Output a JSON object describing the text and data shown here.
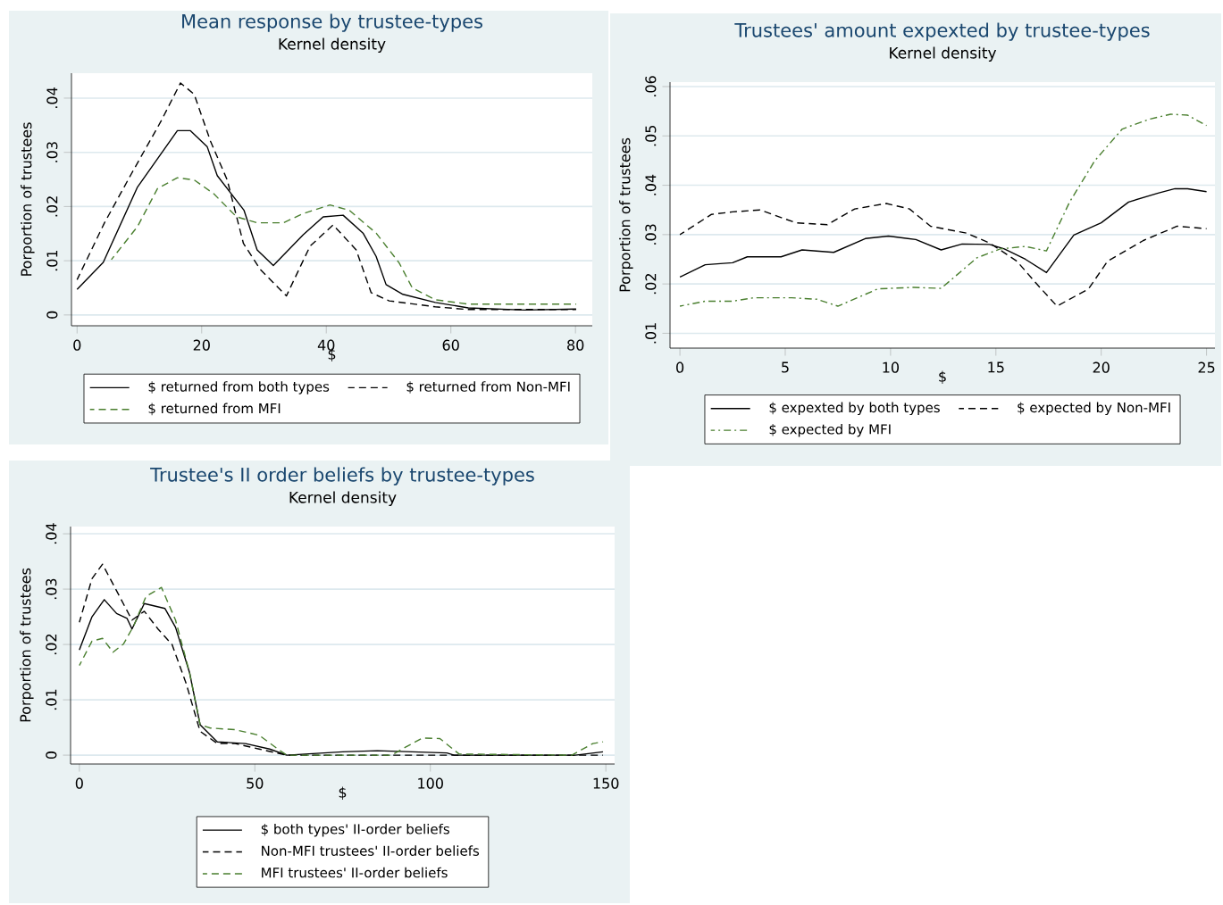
{
  "chart_data": [
    {
      "type": "line",
      "title": "Mean response by trustee-types",
      "subtitle": "Kernel density",
      "xlabel": "$",
      "ylabel": "Porportion of trustees",
      "xlim": [
        -0.9,
        82.7
      ],
      "ylim": [
        -0.002,
        0.0446
      ],
      "xticks": [
        0,
        20,
        40,
        60,
        80
      ],
      "yticks": [
        0,
        {
          "value": 0.01,
          "label": ".01"
        },
        {
          "value": 0.02,
          "label": ".02"
        },
        {
          "value": 0.03,
          "label": ".03"
        },
        {
          "value": 0.04,
          "label": ".04"
        }
      ],
      "grid": "y",
      "legend": "bottom",
      "series": [
        {
          "name": "$ returned from both types",
          "color": "#000000",
          "line_style": "solid",
          "x": [
            0,
            4.2,
            9.7,
            16.1,
            18.2,
            20.9,
            22.5,
            26.8,
            28.9,
            31.5,
            36.3,
            39.5,
            42.7,
            45.9,
            48,
            49.6,
            52.3,
            57.5,
            62.8,
            71.8,
            80.1
          ],
          "values": [
            0.0047,
            0.0097,
            0.0236,
            0.034,
            0.034,
            0.031,
            0.0257,
            0.0193,
            0.012,
            0.0091,
            0.0148,
            0.0181,
            0.0184,
            0.0151,
            0.0108,
            0.0056,
            0.0038,
            0.0023,
            0.0013,
            0.0009,
            0.0011
          ]
        },
        {
          "name": "$ returned from Non-MFI",
          "color": "#000000",
          "line_style": "dashed",
          "x": [
            0,
            4.4,
            8.7,
            13.5,
            16.6,
            18.8,
            21.4,
            24.1,
            26.7,
            29.4,
            33.6,
            37.4,
            41.1,
            44.8,
            47.2,
            50.1,
            57.5,
            62.8,
            80.1
          ],
          "values": [
            0.0065,
            0.017,
            0.026,
            0.0358,
            0.0428,
            0.0407,
            0.0321,
            0.0249,
            0.0132,
            0.0084,
            0.0035,
            0.0127,
            0.0166,
            0.012,
            0.0041,
            0.0026,
            0.0015,
            0.001,
            0.001
          ]
        },
        {
          "name": "$ returned from MFI",
          "color": "#4a7f2f",
          "line_style": "dashed",
          "x": [
            5.5,
            9.7,
            12.9,
            16.1,
            18.8,
            21.9,
            25.6,
            28.9,
            33.1,
            36.3,
            40.6,
            43.7,
            48,
            51.7,
            53.8,
            57.5,
            62.8,
            80.1
          ],
          "values": [
            0.0102,
            0.0163,
            0.0233,
            0.0253,
            0.0249,
            0.0224,
            0.0181,
            0.017,
            0.017,
            0.0187,
            0.0203,
            0.0193,
            0.0151,
            0.0096,
            0.005,
            0.0028,
            0.002,
            0.002
          ]
        }
      ]
    },
    {
      "type": "line",
      "title": "Trustees' amount expexted by trustee-types",
      "subtitle": "Kernel density",
      "xlabel": "$",
      "ylabel": "Porportion of trustees",
      "xlim": [
        -0.47,
        25.4
      ],
      "ylim": [
        0.007,
        0.0609
      ],
      "xticks": [
        0,
        5,
        10,
        15,
        20,
        25
      ],
      "yticks": [
        {
          "value": 0.01,
          "label": ".01"
        },
        {
          "value": 0.02,
          "label": ".02"
        },
        {
          "value": 0.03,
          "label": ".03"
        },
        {
          "value": 0.04,
          "label": ".04"
        },
        {
          "value": 0.05,
          "label": ".05"
        },
        {
          "value": 0.06,
          "label": ".06"
        }
      ],
      "grid": "y",
      "legend": "bottom",
      "series": [
        {
          "name": "$ expexted by both types",
          "color": "#000000",
          "line_style": "solid",
          "x": [
            0,
            1.2,
            2.5,
            3.2,
            4.8,
            5.8,
            7.3,
            8.8,
            9.9,
            11.2,
            12.4,
            13.4,
            14.7,
            15.4,
            16.4,
            17.4,
            18.7,
            20,
            21.3,
            22.7,
            23.5,
            24.1,
            25
          ],
          "values": [
            0.0214,
            0.0239,
            0.0243,
            0.0255,
            0.0255,
            0.0269,
            0.0264,
            0.0292,
            0.0297,
            0.029,
            0.0269,
            0.0281,
            0.028,
            0.0271,
            0.025,
            0.0223,
            0.0299,
            0.0324,
            0.0366,
            0.0384,
            0.0393,
            0.0393,
            0.0387
          ]
        },
        {
          "name": "$ expected by Non-MFI",
          "color": "#000000",
          "line_style": "dashed",
          "x": [
            0,
            1.5,
            2.5,
            3.8,
            5.5,
            7,
            8.3,
            9.8,
            10.9,
            11.9,
            13.6,
            14.7,
            16,
            17,
            17.9,
            19.4,
            20.3,
            22,
            23.6,
            25
          ],
          "values": [
            0.03,
            0.0341,
            0.0346,
            0.035,
            0.0324,
            0.032,
            0.0352,
            0.0363,
            0.0352,
            0.0317,
            0.0303,
            0.0283,
            0.0246,
            0.0197,
            0.0155,
            0.019,
            0.0246,
            0.0288,
            0.0317,
            0.0312
          ]
        },
        {
          "name": "$ expected by MFI",
          "color": "#4a7f2f",
          "line_style": "dashdot",
          "x": [
            0,
            1.2,
            2.5,
            3.5,
            5.3,
            6.5,
            7.5,
            9.4,
            11.1,
            12.4,
            14.1,
            15.2,
            16.4,
            17.4,
            18.5,
            19.7,
            21,
            22.3,
            23.3,
            24.1,
            25
          ],
          "values": [
            0.0155,
            0.0165,
            0.0165,
            0.0172,
            0.0172,
            0.0169,
            0.0155,
            0.019,
            0.0193,
            0.0191,
            0.0253,
            0.0271,
            0.0276,
            0.0267,
            0.0366,
            0.045,
            0.0514,
            0.0534,
            0.0544,
            0.0542,
            0.0521
          ]
        }
      ]
    },
    {
      "type": "line",
      "title": "Trustee's II order beliefs by trustee-types",
      "subtitle": "Kernel density",
      "xlabel": "$",
      "ylabel": "Porportion of trustees",
      "xlim": [
        -2.5,
        152.5
      ],
      "ylim": [
        -0.0016,
        0.0413
      ],
      "xticks": [
        0,
        50,
        100,
        150
      ],
      "yticks": [
        0,
        {
          "value": 0.01,
          "label": ".01"
        },
        {
          "value": 0.02,
          "label": ".02"
        },
        {
          "value": 0.03,
          "label": ".03"
        },
        {
          "value": 0.04,
          "label": ".04"
        }
      ],
      "grid": "y",
      "legend": "bottom",
      "series": [
        {
          "name": "$ both types' II-order beliefs",
          "color": "#000000",
          "line_style": "solid",
          "x": [
            0,
            3.6,
            7.1,
            10.6,
            13.6,
            15,
            18.5,
            24.4,
            27.4,
            31.4,
            34.4,
            39.3,
            47.3,
            54.2,
            59.1,
            75,
            84.9,
            104.7,
            106.8,
            141.3,
            149.2
          ],
          "values": [
            0.019,
            0.025,
            0.0281,
            0.0256,
            0.0247,
            0.0228,
            0.0274,
            0.0265,
            0.0231,
            0.0149,
            0.0055,
            0.0024,
            0.0021,
            0.0011,
            0,
            0.0006,
            0.0008,
            0.0004,
            0,
            0,
            0.0006
          ]
        },
        {
          "name": "Non-MFI trustees' II-order beliefs",
          "color": "#000000",
          "line_style": "dashed",
          "x": [
            0,
            3.6,
            6.6,
            10.6,
            15,
            18.5,
            22.4,
            26.4,
            30.4,
            34.4,
            39.3,
            44.4,
            51.2,
            59.1,
            149.2
          ],
          "values": [
            0.024,
            0.0319,
            0.0345,
            0.0297,
            0.0244,
            0.026,
            0.0228,
            0.02,
            0.013,
            0.0043,
            0.0021,
            0.0021,
            0.0011,
            0,
            0
          ]
        },
        {
          "name": "MFI trustees' II-order beliefs",
          "color": "#4a7f2f",
          "line_style": "dashed",
          "x": [
            0,
            3.6,
            6.6,
            9.6,
            12.6,
            15.5,
            19,
            23.4,
            27.4,
            31.4,
            34.4,
            37.3,
            44.3,
            51.2,
            57.2,
            59.1,
            88.9,
            92.8,
            97.8,
            102.7,
            108.2,
            140.3,
            146.3,
            149.2
          ],
          "values": [
            0.0162,
            0.0206,
            0.0211,
            0.0186,
            0.0201,
            0.0234,
            0.0287,
            0.0303,
            0.0244,
            0.0149,
            0.0055,
            0.0049,
            0.0046,
            0.0036,
            0.0008,
            0,
            0,
            0.0014,
            0.0031,
            0.003,
            0.0002,
            0,
            0.0021,
            0.0024
          ]
        }
      ]
    }
  ]
}
